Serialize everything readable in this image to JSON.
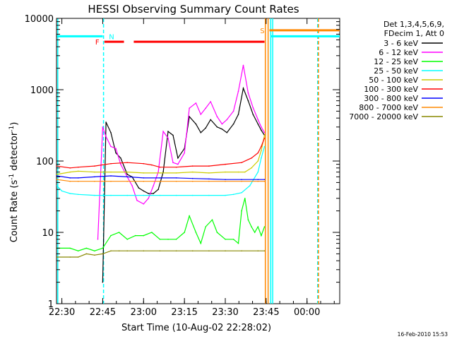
{
  "chart_data": {
    "type": "line",
    "title": "HESSI Observing Summary Count Rates",
    "xlabel": "Start Time (10-Aug-02 22:28:02)",
    "ylabel_main": "Count Rate (s",
    "ylabel_sup1": "-1",
    "ylabel_mid": " detector",
    "ylabel_sup2": "-1",
    "ylabel_end": ")",
    "y_log": true,
    "xlim": [
      22.4672,
      24.2
    ],
    "ylim": [
      1,
      10000
    ],
    "x_ticks": [
      {
        "v": 22.5,
        "label": "22:30"
      },
      {
        "v": 22.75,
        "label": "22:45"
      },
      {
        "v": 23.0,
        "label": "23:00"
      },
      {
        "v": 23.25,
        "label": "23:15"
      },
      {
        "v": 23.5,
        "label": "23:30"
      },
      {
        "v": 23.75,
        "label": "23:45"
      },
      {
        "v": 24.0,
        "label": "00:00"
      }
    ],
    "y_ticks": [
      {
        "v": 1,
        "label": "1"
      },
      {
        "v": 10,
        "label": "10"
      },
      {
        "v": 100,
        "label": "100"
      },
      {
        "v": 1000,
        "label": "1000"
      },
      {
        "v": 10000,
        "label": "10000"
      }
    ],
    "legend_header": [
      "Det 1,3,4,5,6,9,",
      "FDecim 1, Att 0"
    ],
    "legend_position": "right",
    "series": [
      {
        "name": "3 - 6 keV",
        "color": "#000000",
        "x": [
          22.75,
          22.77,
          22.8,
          22.83,
          22.86,
          22.9,
          22.93,
          22.97,
          23.0,
          23.03,
          23.06,
          23.09,
          23.12,
          23.15,
          23.18,
          23.21,
          23.25,
          23.28,
          23.32,
          23.35,
          23.38,
          23.41,
          23.45,
          23.48,
          23.51,
          23.55,
          23.58,
          23.61,
          23.64,
          23.67,
          23.7,
          23.72,
          23.74
        ],
        "values": [
          2,
          350,
          250,
          130,
          110,
          65,
          60,
          42,
          38,
          35,
          35,
          40,
          70,
          260,
          230,
          110,
          150,
          420,
          330,
          250,
          290,
          380,
          300,
          280,
          250,
          330,
          450,
          1050,
          700,
          450,
          330,
          270,
          230
        ]
      },
      {
        "name": "6 - 12 keV",
        "color": "#ff00ff",
        "x": [
          22.72,
          22.75,
          22.77,
          22.8,
          22.83,
          22.86,
          22.9,
          22.93,
          22.96,
          23.0,
          23.03,
          23.06,
          23.09,
          23.12,
          23.15,
          23.18,
          23.21,
          23.25,
          23.28,
          23.32,
          23.35,
          23.38,
          23.41,
          23.45,
          23.48,
          23.51,
          23.55,
          23.58,
          23.61,
          23.64,
          23.67,
          23.7,
          23.72,
          23.74
        ],
        "values": [
          8,
          300,
          220,
          160,
          150,
          90,
          60,
          45,
          28,
          25,
          30,
          45,
          70,
          260,
          210,
          95,
          90,
          130,
          550,
          650,
          450,
          550,
          680,
          420,
          330,
          380,
          500,
          950,
          2200,
          900,
          560,
          380,
          300,
          250
        ]
      },
      {
        "name": "12 - 25 keV",
        "color": "#00ff00",
        "x": [
          22.47,
          22.55,
          22.6,
          22.65,
          22.7,
          22.75,
          22.8,
          22.85,
          22.9,
          22.95,
          23.0,
          23.05,
          23.1,
          23.15,
          23.2,
          23.25,
          23.28,
          23.32,
          23.35,
          23.38,
          23.42,
          23.45,
          23.5,
          23.55,
          23.58,
          23.6,
          23.62,
          23.64,
          23.66,
          23.68,
          23.7,
          23.72,
          23.74
        ],
        "values": [
          6,
          6,
          5.5,
          6,
          5.5,
          6,
          9,
          10,
          8,
          9,
          9,
          10,
          8,
          8,
          8,
          10,
          17,
          10,
          7,
          12,
          15,
          10,
          8,
          8,
          7,
          20,
          30,
          15,
          12,
          10,
          12,
          9,
          12
        ]
      },
      {
        "name": "25 - 50 keV",
        "color": "#00ffff",
        "x": [
          22.47,
          22.5,
          22.55,
          22.6,
          22.7,
          22.8,
          22.9,
          23.0,
          23.1,
          23.2,
          23.3,
          23.4,
          23.5,
          23.55,
          23.6,
          23.65,
          23.7,
          23.72,
          23.74
        ],
        "values": [
          45,
          38,
          35,
          34,
          33,
          33,
          33,
          33,
          33,
          33,
          33,
          33,
          33,
          34,
          36,
          45,
          70,
          110,
          160
        ]
      },
      {
        "name": "50 - 100 keV",
        "color": "#cccc00",
        "x": [
          22.47,
          22.55,
          22.6,
          22.7,
          22.8,
          22.9,
          23.0,
          23.1,
          23.2,
          23.3,
          23.4,
          23.5,
          23.58,
          23.62,
          23.66,
          23.7,
          23.72,
          23.74
        ],
        "values": [
          65,
          70,
          72,
          70,
          70,
          70,
          68,
          68,
          68,
          70,
          68,
          70,
          70,
          70,
          80,
          100,
          140,
          230
        ]
      },
      {
        "name": "100 - 300 keV",
        "color": "#ff0000",
        "x": [
          22.47,
          22.55,
          22.6,
          22.7,
          22.8,
          22.9,
          23.0,
          23.05,
          23.1,
          23.2,
          23.3,
          23.4,
          23.5,
          23.6,
          23.66,
          23.7,
          23.72,
          23.74
        ],
        "values": [
          85,
          80,
          82,
          85,
          92,
          95,
          92,
          88,
          82,
          82,
          85,
          85,
          90,
          95,
          110,
          130,
          160,
          210
        ]
      },
      {
        "name": "300 - 800 keV",
        "color": "#0000ff",
        "x": [
          22.47,
          22.55,
          22.6,
          22.7,
          22.8,
          22.9,
          23.0,
          23.1,
          23.2,
          23.3,
          23.4,
          23.5,
          23.6,
          23.7,
          23.74
        ],
        "values": [
          62,
          58,
          58,
          60,
          62,
          60,
          58,
          58,
          58,
          57,
          56,
          55,
          55,
          55,
          55
        ]
      },
      {
        "name": "800 - 7000 keV",
        "color": "#ff8800",
        "x": [
          22.47,
          22.55,
          22.6,
          22.7,
          22.8,
          22.9,
          23.0,
          23.1,
          23.2,
          23.3,
          23.4,
          23.5,
          23.6,
          23.7,
          23.74
        ],
        "values": [
          55,
          52,
          52,
          52,
          52,
          52,
          52,
          52,
          52,
          52,
          52,
          52,
          52,
          52,
          52
        ]
      },
      {
        "name": "7000 - 20000 keV",
        "color": "#888800",
        "x": [
          22.47,
          22.55,
          22.6,
          22.65,
          22.7,
          22.75,
          22.8,
          22.85,
          22.9,
          23.0,
          23.1,
          23.2,
          23.3,
          23.4,
          23.5,
          23.6,
          23.7,
          23.74
        ],
        "values": [
          4.5,
          4.5,
          4.5,
          5,
          4.8,
          5,
          5.5,
          5.5,
          5.5,
          5.5,
          5.5,
          5.5,
          5.5,
          5.5,
          5.5,
          5.5,
          5.5,
          5.5
        ]
      }
    ],
    "flag_bars": [
      {
        "label": "N",
        "color": "#00ffff",
        "x_start": 22.47,
        "x_end": 22.75,
        "y": 5600
      },
      {
        "label": "F",
        "color": "#ff0000",
        "x_start": 22.76,
        "x_end": 22.88,
        "y": 4700
      },
      {
        "label": "",
        "color": "#ff0000",
        "x_start": 22.94,
        "x_end": 23.74,
        "y": 4700
      },
      {
        "label": "",
        "color": "#00ffff",
        "x_start": 23.78,
        "x_end": 24.2,
        "y": 5600
      },
      {
        "label": "S",
        "color": "#ff8800",
        "x_start": 23.77,
        "x_end": 24.2,
        "y": 6800
      }
    ],
    "vertical_markers": [
      {
        "x": 22.475,
        "color": "#00ffff",
        "style": "solid"
      },
      {
        "x": 22.755,
        "color": "#00ffff",
        "style": "dashed"
      },
      {
        "x": 23.745,
        "color": "#ff8800",
        "style": "solid"
      },
      {
        "x": 23.762,
        "color": "#ff8800",
        "style": "solid"
      },
      {
        "x": 23.778,
        "color": "#00ffff",
        "style": "solid"
      },
      {
        "x": 23.79,
        "color": "#00ffff",
        "style": "solid"
      },
      {
        "x": 24.065,
        "color": "#00ffff",
        "style": "dashed"
      },
      {
        "x": 24.07,
        "color": "#ff8800",
        "style": "dashed"
      }
    ],
    "footer_timestamp": "16-Feb-2010 15:53"
  }
}
